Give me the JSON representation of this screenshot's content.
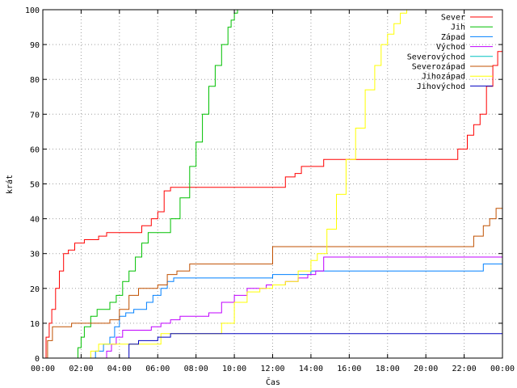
{
  "chart_data": {
    "type": "line",
    "xlabel": "Čas",
    "ylabel": "krát",
    "xlim": [
      0,
      1440
    ],
    "ylim": [
      0,
      100
    ],
    "x_ticks": [
      {
        "value": 0,
        "label": "00:00"
      },
      {
        "value": 120,
        "label": "02:00"
      },
      {
        "value": 240,
        "label": "04:00"
      },
      {
        "value": 360,
        "label": "06:00"
      },
      {
        "value": 480,
        "label": "08:00"
      },
      {
        "value": 600,
        "label": "10:00"
      },
      {
        "value": 720,
        "label": "12:00"
      },
      {
        "value": 840,
        "label": "14:00"
      },
      {
        "value": 960,
        "label": "16:00"
      },
      {
        "value": 1080,
        "label": "18:00"
      },
      {
        "value": 1200,
        "label": "20:00"
      },
      {
        "value": 1320,
        "label": "22:00"
      },
      {
        "value": 1440,
        "label": "00:00"
      }
    ],
    "y_ticks": [
      {
        "value": 0,
        "label": "0"
      },
      {
        "value": 10,
        "label": "10"
      },
      {
        "value": 20,
        "label": "20"
      },
      {
        "value": 30,
        "label": "30"
      },
      {
        "value": 40,
        "label": "40"
      },
      {
        "value": 50,
        "label": "50"
      },
      {
        "value": 60,
        "label": "60"
      },
      {
        "value": 70,
        "label": "70"
      },
      {
        "value": 80,
        "label": "80"
      },
      {
        "value": 90,
        "label": "90"
      },
      {
        "value": 100,
        "label": "100"
      }
    ],
    "grid": true,
    "legend_position": "top-right",
    "series": [
      {
        "name": "Sever",
        "color": "#ff0000",
        "x": [
          0,
          10,
          20,
          28,
          40,
          52,
          65,
          80,
          100,
          130,
          155,
          175,
          200,
          230,
          260,
          290,
          310,
          340,
          355,
          360,
          380,
          400,
          460,
          520,
          600,
          700,
          740,
          760,
          790,
          810,
          880,
          960,
          1080,
          1200,
          1260,
          1280,
          1300,
          1330,
          1350,
          1370,
          1390,
          1410,
          1425,
          1440
        ],
        "y": [
          0,
          6,
          10,
          14,
          20,
          25,
          30,
          31,
          33,
          34,
          34,
          35,
          36,
          36,
          36,
          36,
          38,
          40,
          40,
          42,
          48,
          49,
          49,
          49,
          49,
          49,
          49,
          52,
          53,
          55,
          57,
          57,
          57,
          57,
          57,
          57,
          60,
          64,
          67,
          70,
          78,
          84,
          88,
          91
        ]
      },
      {
        "name": "Jih",
        "color": "#00c000",
        "x": [
          100,
          110,
          120,
          130,
          150,
          170,
          190,
          210,
          230,
          250,
          270,
          290,
          310,
          330,
          350,
          370,
          400,
          430,
          460,
          480,
          500,
          520,
          540,
          560,
          580,
          590,
          600,
          610
        ],
        "y": [
          0,
          3,
          6,
          9,
          12,
          14,
          14,
          16,
          18,
          22,
          25,
          29,
          33,
          36,
          36,
          36,
          40,
          46,
          55,
          62,
          70,
          78,
          84,
          90,
          95,
          97,
          99,
          100
        ]
      },
      {
        "name": "Západ",
        "color": "#0080ff",
        "x": [
          150,
          165,
          190,
          210,
          225,
          240,
          260,
          285,
          305,
          325,
          345,
          370,
          390,
          410,
          430,
          455,
          480,
          540,
          600,
          660,
          720,
          780,
          840,
          900,
          960,
          1020,
          1080,
          1140,
          1200,
          1260,
          1320,
          1380,
          1440
        ],
        "y": [
          0,
          2,
          4,
          6,
          9,
          12,
          13,
          14,
          14,
          16,
          18,
          20,
          22,
          23,
          23,
          23,
          23,
          23,
          23,
          23,
          24,
          24,
          25,
          25,
          25,
          25,
          25,
          25,
          25,
          25,
          25,
          27,
          27
        ]
      },
      {
        "name": "Východ",
        "color": "#c000ff",
        "x": [
          180,
          200,
          215,
          230,
          250,
          280,
          310,
          340,
          370,
          400,
          430,
          470,
          520,
          560,
          600,
          640,
          700,
          760,
          800,
          830,
          855,
          880,
          960,
          1080,
          1200,
          1320,
          1440
        ],
        "y": [
          0,
          2,
          4,
          6,
          8,
          8,
          8,
          9,
          10,
          11,
          12,
          12,
          13,
          16,
          18,
          20,
          21,
          22,
          23,
          24,
          25,
          29,
          29,
          29,
          29,
          29,
          29
        ]
      },
      {
        "name": "Severovýchod",
        "color": "#00c0c0",
        "x": [
          0,
          1440
        ],
        "y": [
          0,
          0
        ]
      },
      {
        "name": "Severozápad",
        "color": "#c05000",
        "x": [
          0,
          15,
          30,
          60,
          90,
          120,
          150,
          180,
          210,
          240,
          270,
          300,
          330,
          360,
          390,
          420,
          460,
          520,
          580,
          630,
          680,
          720,
          760,
          800,
          840,
          900,
          960,
          1080,
          1200,
          1280,
          1320,
          1350,
          1380,
          1400,
          1420,
          1440
        ],
        "y": [
          0,
          5,
          9,
          9,
          10,
          10,
          10,
          10,
          11,
          14,
          18,
          20,
          20,
          21,
          24,
          25,
          27,
          27,
          27,
          27,
          27,
          32,
          32,
          32,
          32,
          32,
          32,
          32,
          32,
          32,
          32,
          35,
          38,
          40,
          43,
          45
        ]
      },
      {
        "name": "Jihozápad",
        "color": "#ffff00",
        "x": [
          130,
          150,
          175,
          200,
          230,
          260,
          300,
          340,
          370,
          400,
          440,
          480,
          520,
          560,
          600,
          640,
          680,
          720,
          760,
          800,
          840,
          860,
          890,
          920,
          950,
          980,
          1010,
          1040,
          1060,
          1080,
          1100,
          1120,
          1140
        ],
        "y": [
          0,
          2,
          4,
          4,
          4,
          4,
          4,
          4,
          7,
          7,
          7,
          7,
          7,
          10,
          16,
          19,
          20,
          21,
          22,
          25,
          28,
          30,
          37,
          47,
          57,
          66,
          77,
          84,
          90,
          93,
          96,
          99,
          100
        ]
      },
      {
        "name": "Jihovýchod",
        "color": "#0000c0",
        "x": [
          240,
          270,
          300,
          330,
          360,
          400,
          460,
          540,
          600,
          720,
          840,
          960,
          1080,
          1200,
          1320,
          1440
        ],
        "y": [
          0,
          4,
          5,
          5,
          6,
          7,
          7,
          7,
          7,
          7,
          7,
          7,
          7,
          7,
          7,
          7
        ]
      }
    ]
  }
}
